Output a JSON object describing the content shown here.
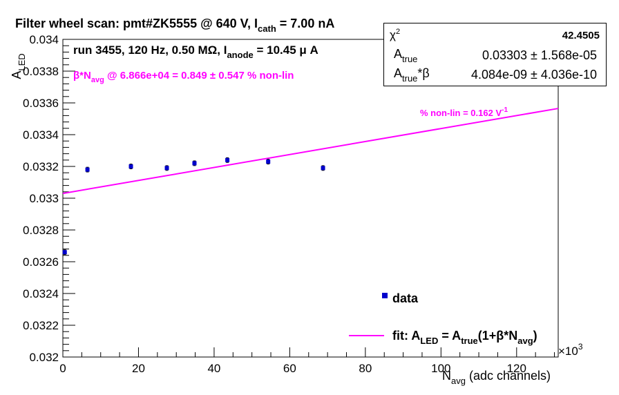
{
  "chart_data": {
    "type": "scatter",
    "title": {
      "prefix": "Filter wheel scan: pmt#ZK5555 @   640 V, I",
      "sub": "cath",
      "suffix": " = 7.00 nA"
    },
    "run_info": {
      "prefix": "run 3455, 120 Hz, 0.50 MΩ, I",
      "sub": "anode",
      "suffix": " = 10.45 μ A"
    },
    "nonlin_summary": {
      "prefix": "β*N",
      "sub": "avg",
      "suffix": " @ 6.866e+04 = 0.849 ± 0.547 % non-lin",
      "color": "#ff00ff"
    },
    "slope_label": {
      "text": "% non-lin = 0.162 V",
      "sup": "-1",
      "color": "#ff00ff"
    },
    "xlabel": {
      "main": "N",
      "sub": "avg",
      "rest": " (adc channels)"
    },
    "ylabel": {
      "main": "A",
      "sub": "LED"
    },
    "x_exponent": {
      "base": "×10",
      "sup": "3"
    },
    "xlim": [
      0,
      131000
    ],
    "ylim": [
      0.032,
      0.034
    ],
    "x_ticks": [
      0,
      20000,
      40000,
      60000,
      80000,
      100000,
      120000
    ],
    "x_tick_labels": [
      "0",
      "20",
      "40",
      "60",
      "80",
      "100",
      "120"
    ],
    "y_ticks": [
      0.032,
      0.0322,
      0.0324,
      0.0326,
      0.0328,
      0.033,
      0.0332,
      0.0334,
      0.0336,
      0.0338,
      0.034
    ],
    "y_tick_labels": [
      "0.032",
      "0.0322",
      "0.0324",
      "0.0326",
      "0.0328",
      "0.033",
      "0.0332",
      "0.0334",
      "0.0336",
      "0.0338",
      "0.034"
    ],
    "series": [
      {
        "name": "data",
        "color": "#0000cc",
        "x": [
          500,
          6500,
          18000,
          27500,
          34800,
          43500,
          54300,
          68800
        ],
        "y": [
          0.03266,
          0.03318,
          0.0332,
          0.03319,
          0.03322,
          0.03324,
          0.03323,
          0.03319
        ],
        "yerr": [
          1.5e-05,
          1.5e-05,
          1.5e-05,
          1.5e-05,
          1.5e-05,
          1.5e-05,
          1.5e-05,
          1.5e-05
        ]
      }
    ],
    "fit": {
      "color": "#ff00ff",
      "A_true": 0.03303,
      "A_true_beta": 4.084e-09,
      "x_range": [
        0,
        131000
      ]
    },
    "legend": {
      "placement": "bottom-right",
      "data_label": "data",
      "fit_label": {
        "p1": "fit: A",
        "s1": "LED",
        "p2": " = A",
        "s2": "true",
        "p3": "(1+β*N",
        "s3": "avg",
        "p4": ")"
      }
    },
    "stats": {
      "chi2_label": "χ",
      "chi2_sup": "2",
      "chi2_value": "42.4505",
      "rows": [
        {
          "label": "A",
          "sub": "true",
          "extra": "",
          "value": "0.03303 ± 1.568e-05"
        },
        {
          "label": "A",
          "sub": "true",
          "extra": "*β",
          "value": "4.084e-09 ± 4.036e-10"
        }
      ]
    },
    "grid": false
  }
}
